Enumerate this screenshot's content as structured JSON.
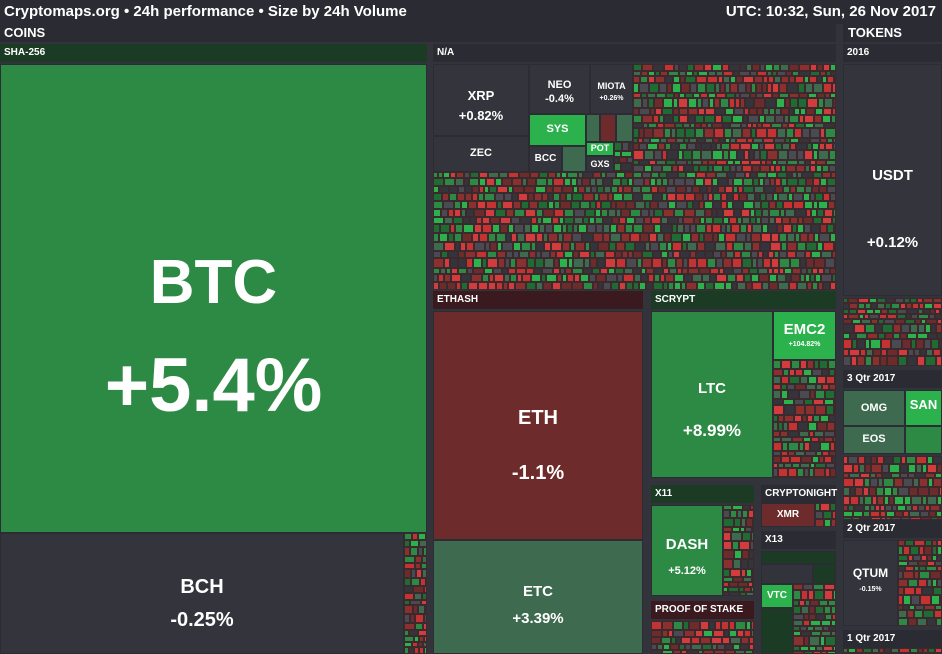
{
  "header": {
    "title": "Cryptomaps.org • 24h performance • Size by 24h Volume",
    "utc": "UTC: 10:32, Sun, 26 Nov 2017"
  },
  "sections": {
    "coins": "COINS",
    "tokens": "TOKENS"
  },
  "groups": {
    "sha256": "SHA-256",
    "na": "N/A",
    "ethash": "ETHASH",
    "scrypt": "SCRYPT",
    "x11": "X11",
    "cryptonight": "CRYPTONIGHT",
    "x13": "X13",
    "pos": "PROOF OF STAKE",
    "t2016": "2016",
    "q3_2017": "3 Qtr 2017",
    "q2_2017": "2 Qtr 2017",
    "q1_2017": "1 Qtr 2017"
  },
  "coins": {
    "btc": {
      "symbol": "BTC",
      "change": "+5.4%"
    },
    "bch": {
      "symbol": "BCH",
      "change": "-0.25%"
    },
    "xrp": {
      "symbol": "XRP",
      "change": "+0.82%"
    },
    "neo": {
      "symbol": "NEO",
      "change": "-0.4%"
    },
    "miota": {
      "symbol": "MIOTA",
      "change": "+0.26%"
    },
    "sys": {
      "symbol": "SYS"
    },
    "zec": {
      "symbol": "ZEC"
    },
    "bcc": {
      "symbol": "BCC"
    },
    "pot": {
      "symbol": "POT"
    },
    "gxs": {
      "symbol": "GXS"
    },
    "eth": {
      "symbol": "ETH",
      "change": "-1.1%"
    },
    "etc": {
      "symbol": "ETC",
      "change": "+3.39%"
    },
    "ltc": {
      "symbol": "LTC",
      "change": "+8.99%"
    },
    "emc2": {
      "symbol": "EMC2",
      "change": "+104.82%"
    },
    "dash": {
      "symbol": "DASH",
      "change": "+5.12%"
    },
    "xmr": {
      "symbol": "XMR"
    },
    "vtc": {
      "symbol": "VTC"
    }
  },
  "tokens": {
    "usdt": {
      "symbol": "USDT",
      "change": "+0.12%"
    },
    "omg": {
      "symbol": "OMG"
    },
    "san": {
      "symbol": "SAN"
    },
    "eos": {
      "symbol": "EOS"
    },
    "qtum": {
      "symbol": "QTUM",
      "change": "-0.15%"
    }
  },
  "colors": {
    "bg": "#33333b",
    "up_strong": "#2d8a45",
    "up_bright": "#2bb24c",
    "down": "#6e2b2b",
    "flat": "#34343c",
    "up_mid": "#3e6b4f",
    "group_green": "#1c3b24",
    "group_red": "#3a1a1e"
  }
}
